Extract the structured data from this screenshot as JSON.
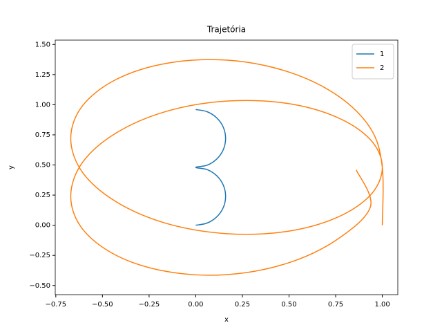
{
  "chart_data": {
    "type": "line",
    "title": "Trajetória",
    "x_label": "x",
    "y_label": "y",
    "xlim": [
      -0.753,
      1.083
    ],
    "ylim": [
      -0.576,
      1.536
    ],
    "xticks": [
      {
        "value": -0.75,
        "label": "−0.75"
      },
      {
        "value": -0.5,
        "label": "−0.50"
      },
      {
        "value": -0.25,
        "label": "−0.25"
      },
      {
        "value": 0,
        "label": "0.00"
      },
      {
        "value": 0.25,
        "label": "0.25"
      },
      {
        "value": 0.5,
        "label": "0.50"
      },
      {
        "value": 0.75,
        "label": "0.75"
      },
      {
        "value": 1,
        "label": "1.00"
      }
    ],
    "yticks": [
      {
        "value": -0.5,
        "label": "−0.50"
      },
      {
        "value": -0.25,
        "label": "−0.25"
      },
      {
        "value": 0,
        "label": "0.00"
      },
      {
        "value": 0.25,
        "label": "0.25"
      },
      {
        "value": 0.5,
        "label": "0.50"
      },
      {
        "value": 0.75,
        "label": "0.75"
      },
      {
        "value": 1,
        "label": "1.00"
      },
      {
        "value": 1.25,
        "label": "1.25"
      },
      {
        "value": 1.5,
        "label": "1.50"
      }
    ],
    "grid": false,
    "legend": "upper-right",
    "series": [
      {
        "name": "1",
        "color": "#1f77b4",
        "x": [
          0,
          0.061,
          0.113,
          0.148,
          0.16,
          0.148,
          0.113,
          0.061,
          0,
          0.061,
          0.113,
          0.148,
          0.16,
          0.148,
          0.113,
          0.061,
          0
        ],
        "values": [
          0,
          0.018,
          0.07,
          0.148,
          0.24,
          0.332,
          0.41,
          0.462,
          0.48,
          0.498,
          0.55,
          0.628,
          0.72,
          0.812,
          0.89,
          0.942,
          0.96
        ]
      },
      {
        "name": "2",
        "color": "#ff7f0e",
        "x": [
          1.0,
          1.0,
          0.937,
          0.755,
          0.485,
          0.165,
          -0.155,
          -0.425,
          -0.607,
          -0.67,
          -0.607,
          -0.425,
          -0.155,
          0.165,
          0.485,
          0.755,
          0.937,
          1.0,
          0.937,
          0.755,
          0.485,
          0.165,
          -0.155,
          -0.425,
          -0.607,
          -0.67,
          -0.607,
          -0.425,
          -0.155,
          0.165,
          0.485,
          0.755,
          0.937,
          0.86
        ],
        "values": [
          0.0,
          0.48,
          0.803,
          1.081,
          1.278,
          1.37,
          1.344,
          1.211,
          0.991,
          0.72,
          0.439,
          0.193,
          0.014,
          -0.07,
          -0.052,
          0.063,
          0.251,
          0.48,
          0.709,
          0.897,
          1.012,
          1.03,
          0.946,
          0.767,
          0.521,
          0.24,
          -0.031,
          -0.251,
          -0.384,
          -0.41,
          -0.318,
          -0.121,
          0.157,
          0.46
        ]
      }
    ]
  }
}
